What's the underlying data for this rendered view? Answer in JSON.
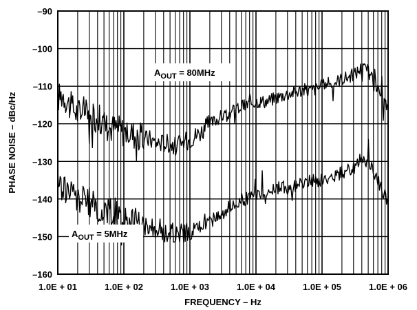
{
  "chart_data": {
    "type": "line",
    "xlabel": "FREQUENCY – Hz",
    "ylabel": "PHASE NOISE – dBc/Hz",
    "xscale": "log",
    "xlim": [
      10,
      1000000
    ],
    "ylim": [
      -160,
      -90
    ],
    "grid": true,
    "x_tick_labels": [
      "1.0E + 01",
      "1.0E + 02",
      "1.0E + 03",
      "1.0E + 04",
      "1.0E + 05",
      "1.0E + 06"
    ],
    "y_tick_labels": [
      "–90",
      "–100",
      "–110",
      "–120",
      "–130",
      "–140",
      "–150",
      "–160"
    ],
    "y_ticks": [
      -90,
      -100,
      -110,
      -120,
      -130,
      -140,
      -150,
      -160
    ],
    "annotations": [
      {
        "main": "A",
        "sub": "OUT",
        "rest": " = 80MHz"
      },
      {
        "main": "A",
        "sub": "OUT",
        "rest": " = 5MHz"
      }
    ],
    "series": [
      {
        "x": [
          10,
          12,
          15,
          20,
          25,
          30,
          40,
          50,
          60,
          80,
          100,
          120,
          150,
          200,
          250,
          300,
          400,
          500,
          600,
          800,
          1000,
          1500,
          2000,
          3000,
          4000,
          5000,
          7000,
          10000,
          15000,
          20000,
          30000,
          50000,
          70000,
          100000,
          150000,
          200000,
          300000,
          400000,
          500000,
          700000,
          1000000
        ],
        "y": [
          -113,
          -112,
          -115,
          -117,
          -116,
          -119,
          -118,
          -120,
          -121,
          -121,
          -122,
          -122,
          -123,
          -124,
          -124,
          -125,
          -125,
          -125,
          -126,
          -125,
          -124,
          -122,
          -120,
          -118,
          -117,
          -116,
          -115,
          -114,
          -114,
          -113,
          -112,
          -111,
          -111,
          -110,
          -109,
          -108,
          -107,
          -105,
          -106,
          -111,
          -116
        ]
      },
      {
        "x": [
          10,
          12,
          15,
          20,
          25,
          30,
          40,
          50,
          60,
          80,
          100,
          120,
          150,
          200,
          250,
          300,
          400,
          500,
          600,
          800,
          1000,
          1500,
          2000,
          3000,
          4000,
          5000,
          7000,
          10000,
          15000,
          20000,
          30000,
          50000,
          70000,
          100000,
          150000,
          200000,
          300000,
          400000,
          500000,
          700000,
          1000000
        ],
        "y": [
          -136,
          -137,
          -138,
          -140,
          -140,
          -141,
          -142,
          -143,
          -143,
          -144,
          -145,
          -145,
          -146,
          -147,
          -147,
          -148,
          -149,
          -149,
          -149,
          -149,
          -149,
          -147,
          -146,
          -144,
          -142,
          -141,
          -140,
          -139,
          -138,
          -137,
          -137,
          -136,
          -135,
          -135,
          -134,
          -133,
          -132,
          -129,
          -130,
          -135,
          -141
        ]
      }
    ]
  }
}
